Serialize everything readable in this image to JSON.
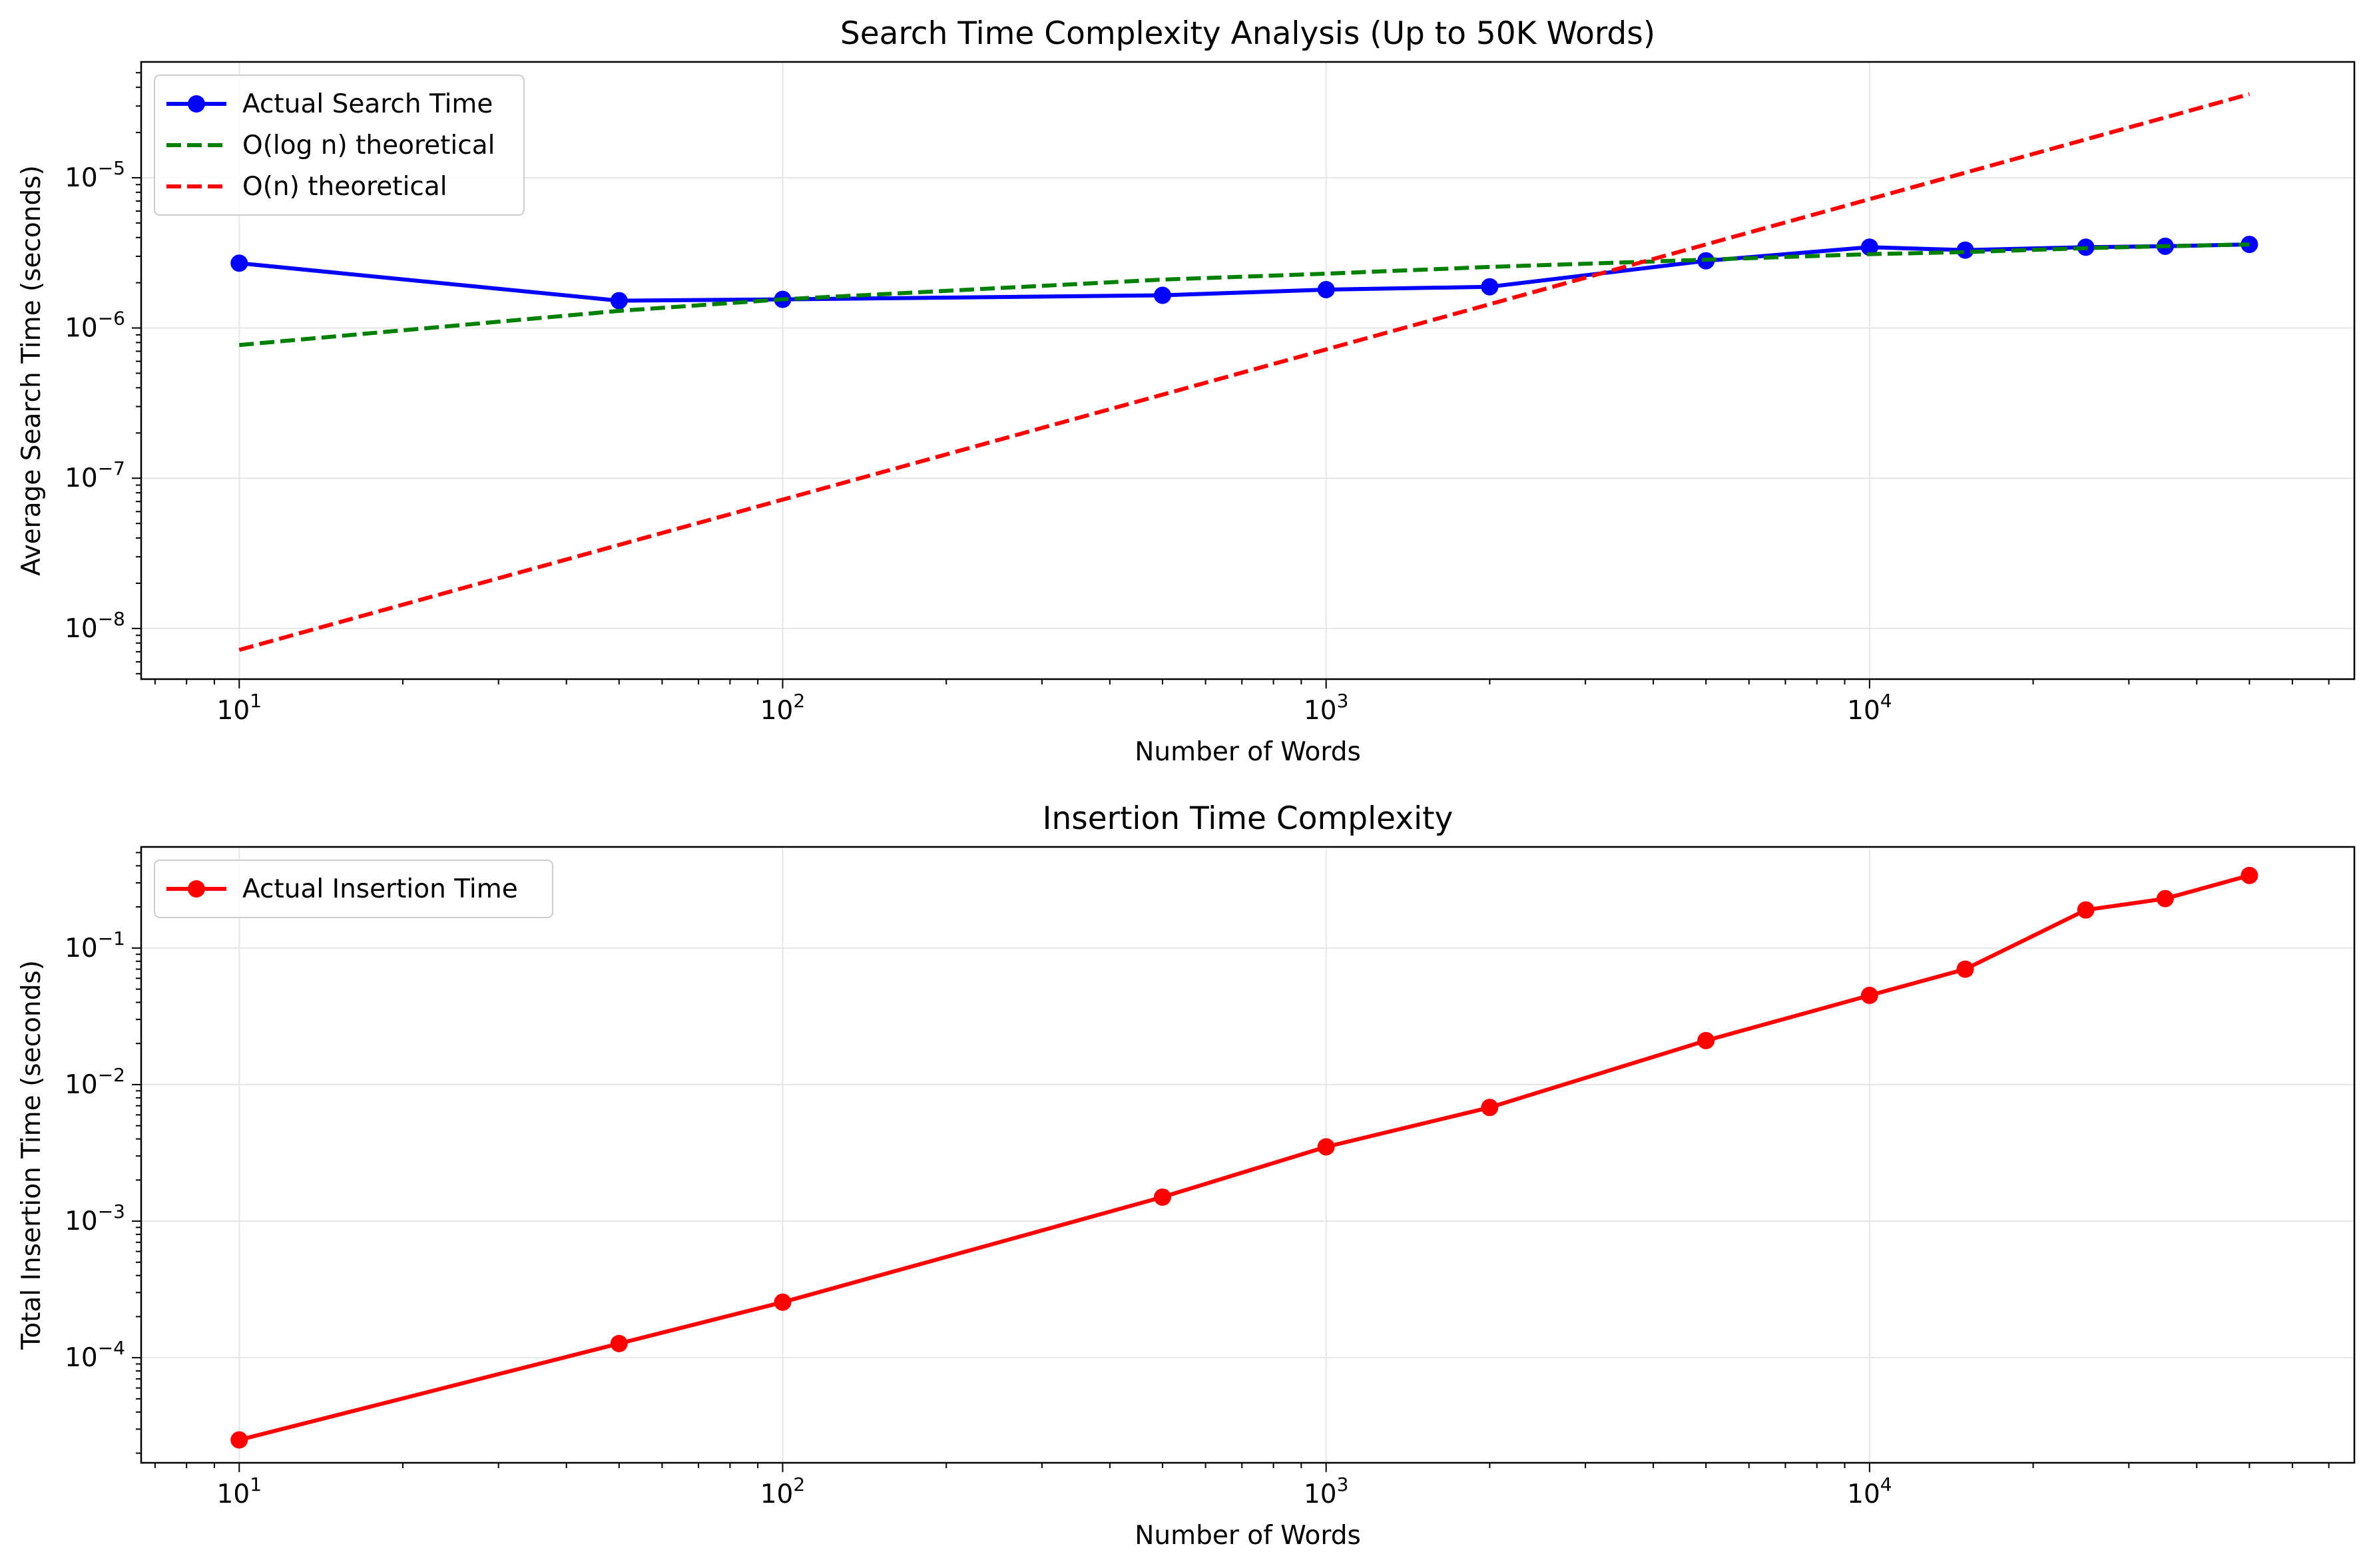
{
  "chart_data": [
    {
      "type": "line",
      "title": "Search Time Complexity Analysis (Up to 50K Words)",
      "xlabel": "Number of Words",
      "ylabel": "Average Search Time (seconds)",
      "xscale": "log",
      "yscale": "log",
      "xlim": [
        6.6,
        78000
      ],
      "ylim": [
        4.6e-09,
        5.9e-05
      ],
      "x_ticks": [
        {
          "value": 10,
          "base": "10",
          "exp": "1"
        },
        {
          "value": 100,
          "base": "10",
          "exp": "2"
        },
        {
          "value": 1000,
          "base": "10",
          "exp": "3"
        },
        {
          "value": 10000,
          "base": "10",
          "exp": "4"
        }
      ],
      "y_ticks": [
        {
          "value": 1e-08,
          "base": "10",
          "exp": "−8"
        },
        {
          "value": 1e-07,
          "base": "10",
          "exp": "−7"
        },
        {
          "value": 1e-06,
          "base": "10",
          "exp": "−6"
        },
        {
          "value": 1e-05,
          "base": "10",
          "exp": "−5"
        }
      ],
      "grid": true,
      "legend_position": "top-left",
      "series": [
        {
          "name": "Actual Search Time",
          "color": "#0000ff",
          "style": "solid",
          "markers": true,
          "x": [
            10,
            50,
            100,
            500,
            1000,
            2000,
            5000,
            10000,
            15000,
            25000,
            35000,
            50000
          ],
          "y": [
            2.7e-06,
            1.52e-06,
            1.55e-06,
            1.65e-06,
            1.8e-06,
            1.88e-06,
            2.8e-06,
            3.45e-06,
            3.3e-06,
            3.45e-06,
            3.5e-06,
            3.6e-06
          ]
        },
        {
          "name": "O(log n) theoretical",
          "color": "#008000",
          "style": "dashed",
          "markers": false,
          "x": [
            10,
            50,
            100,
            500,
            1000,
            2000,
            5000,
            10000,
            15000,
            25000,
            35000,
            50000
          ],
          "y": [
            7.7e-07,
            1.3e-06,
            1.55e-06,
            2.1e-06,
            2.3e-06,
            2.55e-06,
            2.85e-06,
            3.1e-06,
            3.2e-06,
            3.4e-06,
            3.5e-06,
            3.6e-06
          ]
        },
        {
          "name": "O(n) theoretical",
          "color": "#ff0000",
          "style": "dashed",
          "markers": false,
          "x": [
            10,
            50,
            100,
            500,
            1000,
            2000,
            5000,
            10000,
            15000,
            25000,
            35000,
            50000
          ],
          "y": [
            7.2e-09,
            3.6e-08,
            7.2e-08,
            3.6e-07,
            7.2e-07,
            1.44e-06,
            3.6e-06,
            7.2e-06,
            1.08e-05,
            1.8e-05,
            2.52e-05,
            3.6e-05
          ]
        }
      ]
    },
    {
      "type": "line",
      "title": "Insertion Time Complexity",
      "xlabel": "Number of Words",
      "ylabel": "Total Insertion Time (seconds)",
      "xscale": "log",
      "yscale": "log",
      "xlim": [
        6.6,
        78000
      ],
      "ylim": [
        1.7e-05,
        0.55
      ],
      "x_ticks": [
        {
          "value": 10,
          "base": "10",
          "exp": "1"
        },
        {
          "value": 100,
          "base": "10",
          "exp": "2"
        },
        {
          "value": 1000,
          "base": "10",
          "exp": "3"
        },
        {
          "value": 10000,
          "base": "10",
          "exp": "4"
        }
      ],
      "y_ticks": [
        {
          "value": 0.0001,
          "base": "10",
          "exp": "−4"
        },
        {
          "value": 0.001,
          "base": "10",
          "exp": "−3"
        },
        {
          "value": 0.01,
          "base": "10",
          "exp": "−2"
        },
        {
          "value": 0.1,
          "base": "10",
          "exp": "−1"
        }
      ],
      "grid": true,
      "legend_position": "top-left",
      "series": [
        {
          "name": "Actual Insertion Time",
          "color": "#ff0000",
          "style": "solid",
          "markers": true,
          "x": [
            10,
            50,
            100,
            500,
            1000,
            2000,
            5000,
            10000,
            15000,
            25000,
            35000,
            50000
          ],
          "y": [
            2.5e-05,
            0.000127,
            0.000255,
            0.0015,
            0.0035,
            0.0068,
            0.021,
            0.045,
            0.07,
            0.19,
            0.23,
            0.34
          ]
        }
      ]
    }
  ]
}
